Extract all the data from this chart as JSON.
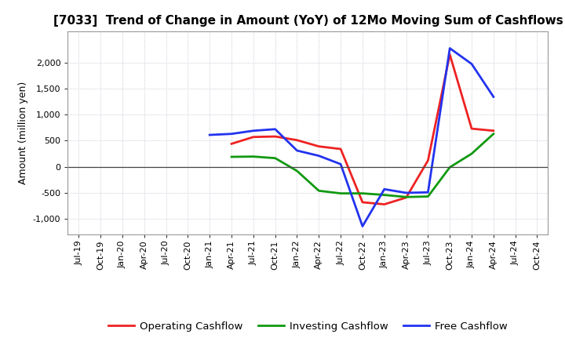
{
  "title": "[7033]  Trend of Change in Amount (YoY) of 12Mo Moving Sum of Cashflows",
  "ylabel": "Amount (million yen)",
  "title_fontsize": 11,
  "label_fontsize": 9,
  "tick_fontsize": 8,
  "background_color": "#ffffff",
  "x_labels": [
    "Jul-19",
    "Oct-19",
    "Jan-20",
    "Apr-20",
    "Jul-20",
    "Oct-20",
    "Jan-21",
    "Apr-21",
    "Jul-21",
    "Oct-21",
    "Jan-22",
    "Apr-22",
    "Jul-22",
    "Oct-22",
    "Jan-23",
    "Apr-23",
    "Jul-23",
    "Oct-23",
    "Jan-24",
    "Apr-24",
    "Jul-24",
    "Oct-24"
  ],
  "operating": [
    null,
    null,
    null,
    null,
    null,
    null,
    null,
    440,
    570,
    580,
    510,
    390,
    340,
    -680,
    -720,
    -590,
    120,
    2150,
    730,
    690,
    null,
    null
  ],
  "investing": [
    null,
    null,
    null,
    null,
    null,
    null,
    null,
    190,
    195,
    165,
    -80,
    -460,
    -510,
    -510,
    -540,
    -580,
    -570,
    -10,
    250,
    630,
    null,
    null
  ],
  "free": [
    null,
    null,
    null,
    null,
    null,
    null,
    610,
    630,
    690,
    720,
    310,
    210,
    50,
    -1140,
    -430,
    -500,
    -490,
    2270,
    1970,
    1340,
    null,
    null
  ],
  "colors": {
    "operating": "#ee2222",
    "investing": "#119911",
    "free": "#2233ee"
  },
  "ylim": [
    -1300,
    2600
  ],
  "yticks": [
    -1000,
    -500,
    0,
    500,
    1000,
    1500,
    2000
  ],
  "legend_labels": [
    "Operating Cashflow",
    "Investing Cashflow",
    "Free Cashflow"
  ]
}
